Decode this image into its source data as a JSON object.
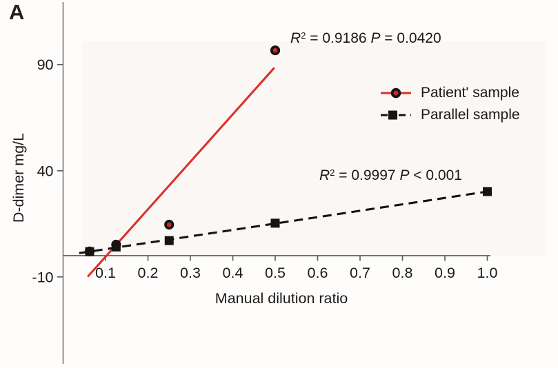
{
  "panel_label": "A",
  "colors": {
    "patient_red": "#d9312a",
    "marker_red_fill": "#cc2b24",
    "marker_black": "#151413",
    "axis_line_gray": "#7f7f7f",
    "tick_line_gray": "#5d5d5d",
    "text_dark": "#1c1a19",
    "plot_bg_tint": "#fbf7f4"
  },
  "chart_data": {
    "type": "scatter",
    "title": "",
    "xlabel": "Manual dilution ratio",
    "ylabel": "D-dimer mg/L",
    "xlim": [
      0,
      1.01
    ],
    "ylim": [
      -52,
      118
    ],
    "grid": false,
    "x_ticks": [
      0.1,
      0.2,
      0.3,
      0.4,
      0.5,
      0.6,
      0.7,
      0.8,
      0.9,
      1.0
    ],
    "x_tick_labels": [
      "0.1",
      "0.2",
      "0.3",
      "0.4",
      "0.5",
      "0.6",
      "0.7",
      "0.8",
      "0.9",
      "1.0"
    ],
    "y_ticks": [
      90,
      40,
      -10
    ],
    "y_tick_labels": [
      "90",
      "40",
      "-10"
    ],
    "legend": {
      "position": "upper right",
      "entries": [
        "Patient' sample",
        "Parallel sample"
      ]
    },
    "series": [
      {
        "name": "Patient' sample",
        "marker": "circle",
        "line_style": "solid",
        "color": "#d9312a",
        "points": [
          [
            0.0625,
            2.0
          ],
          [
            0.125,
            5.2
          ],
          [
            0.25,
            14.6
          ],
          [
            0.5,
            96.7
          ]
        ],
        "trend_line": {
          "x1": 0.058,
          "y1": -9.9,
          "x2": 0.498,
          "y2": 88.5
        },
        "r2": "0.9186",
        "p": "0.0420"
      },
      {
        "name": "Parallel sample",
        "marker": "square",
        "line_style": "dashed",
        "color": "#151413",
        "points": [
          [
            0.0625,
            1.9
          ],
          [
            0.125,
            4.1
          ],
          [
            0.25,
            7.1
          ],
          [
            0.5,
            15.3
          ],
          [
            1.0,
            30.2
          ]
        ],
        "trend_line": {
          "x1": 0.038,
          "y1": 1.2,
          "x2": 1.0,
          "y2": 30.2
        },
        "r2": "0.9997",
        "p": "< 0.001"
      }
    ],
    "annotations": [
      {
        "r_sym": "R",
        "r_sup": "2",
        "r_eq": "= 0.9186",
        "p_sym": "P",
        "p_eq": "= 0.0420"
      },
      {
        "r_sym": "R",
        "r_sup": "2",
        "r_eq": "= 0.9997",
        "p_sym": "P",
        "p_eq": "< 0.001"
      }
    ]
  }
}
